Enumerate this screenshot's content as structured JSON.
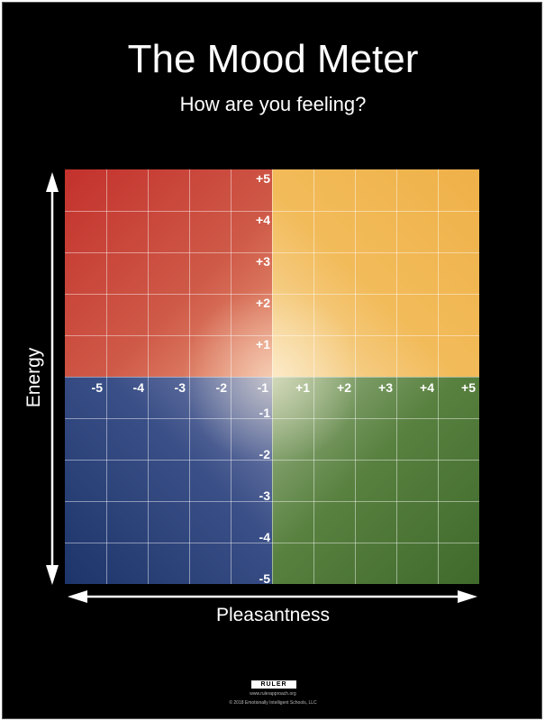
{
  "title": "The Mood Meter",
  "subtitle": "How are you feeling?",
  "y_axis_label": "Energy",
  "x_axis_label": "Pleasantness",
  "x_ticks": [
    "-5",
    "-4",
    "-3",
    "-2",
    "-1",
    "+1",
    "+2",
    "+3",
    "+4",
    "+5"
  ],
  "y_ticks": [
    "+5",
    "+4",
    "+3",
    "+2",
    "+1",
    "-1",
    "-2",
    "-3",
    "-4",
    "-5"
  ],
  "quadrants": [
    {
      "name": "red",
      "color": "#c3312c",
      "pleasantness": "negative",
      "energy": "positive"
    },
    {
      "name": "yellow",
      "color": "#efb149",
      "pleasantness": "positive",
      "energy": "positive"
    },
    {
      "name": "blue",
      "color": "#1d356b",
      "pleasantness": "negative",
      "energy": "negative"
    },
    {
      "name": "green",
      "color": "#3f6a2c",
      "pleasantness": "positive",
      "energy": "negative"
    }
  ],
  "footer": {
    "logo": "RULER",
    "url": "www.rulerapproach.org",
    "copyright": "© 2018 Emotionally Intelligent Schools, LLC"
  }
}
